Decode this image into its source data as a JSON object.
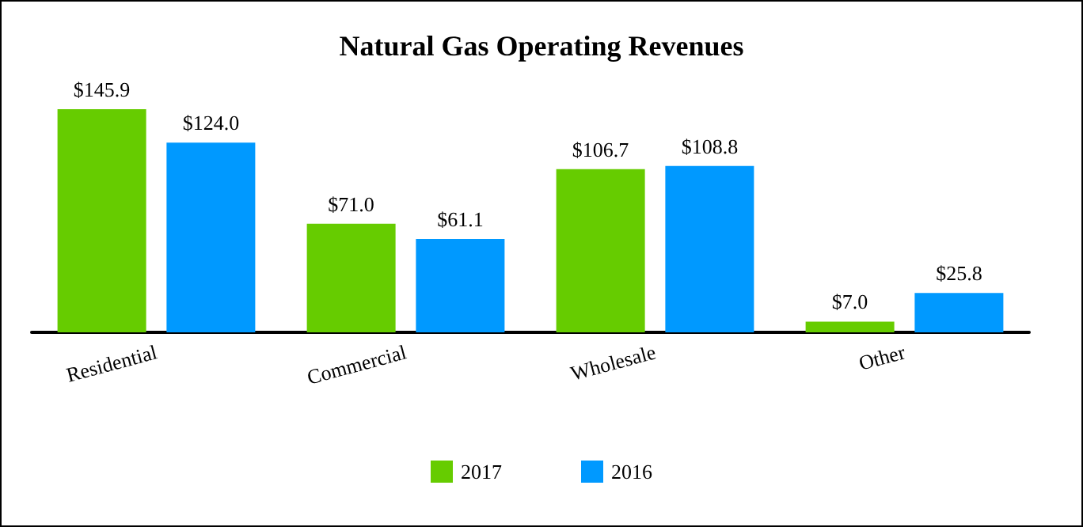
{
  "chart_data": {
    "type": "bar",
    "title": "Natural Gas Operating Revenues",
    "categories": [
      "Residential",
      "Commercial",
      "Wholesale",
      "Other"
    ],
    "series": [
      {
        "name": "2017",
        "color": "#66cc00",
        "values": [
          145.9,
          71.0,
          106.7,
          7.0
        ],
        "value_labels": [
          "$145.9",
          "$71.0",
          "$106.7",
          "$7.0"
        ]
      },
      {
        "name": "2016",
        "color": "#0099ff",
        "values": [
          124.0,
          61.1,
          108.8,
          25.8
        ],
        "value_labels": [
          "$124.0",
          "$61.1",
          "$108.8",
          "$25.8"
        ]
      }
    ],
    "legend": "bottom"
  }
}
